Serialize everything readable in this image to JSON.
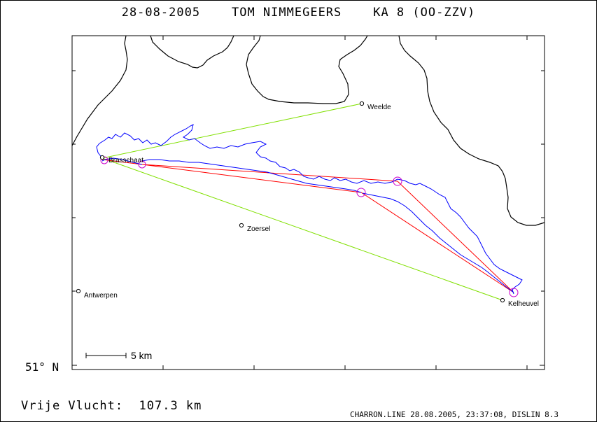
{
  "header": {
    "title": "28-08-2005    TOM NIMMEGEERS    KA 8 (OO-ZZV)"
  },
  "axis": {
    "latitude_label": "51° N"
  },
  "scale_bar": {
    "label": "5 km"
  },
  "places": [
    {
      "id": "weelde",
      "name": "Weelde"
    },
    {
      "id": "brasschaat",
      "name": "Brasschaat"
    },
    {
      "id": "zoersel",
      "name": "Zoersel"
    },
    {
      "id": "antwerpen",
      "name": "Antwerpen"
    },
    {
      "id": "kelheuvel",
      "name": "Kelheuvel"
    }
  ],
  "summary": {
    "distance": "Vrije Vlucht:  107.3 km"
  },
  "footer": {
    "credit": "CHARRON.LINE 28.08.2005, 23:37:08, DISLIN 8.3"
  },
  "colors": {
    "track": "#0000ff",
    "task_legs": "#ff0000",
    "declared_triangle": "#80e000",
    "turnpoint_markers": "#cc00cc",
    "border": "#000000"
  }
}
